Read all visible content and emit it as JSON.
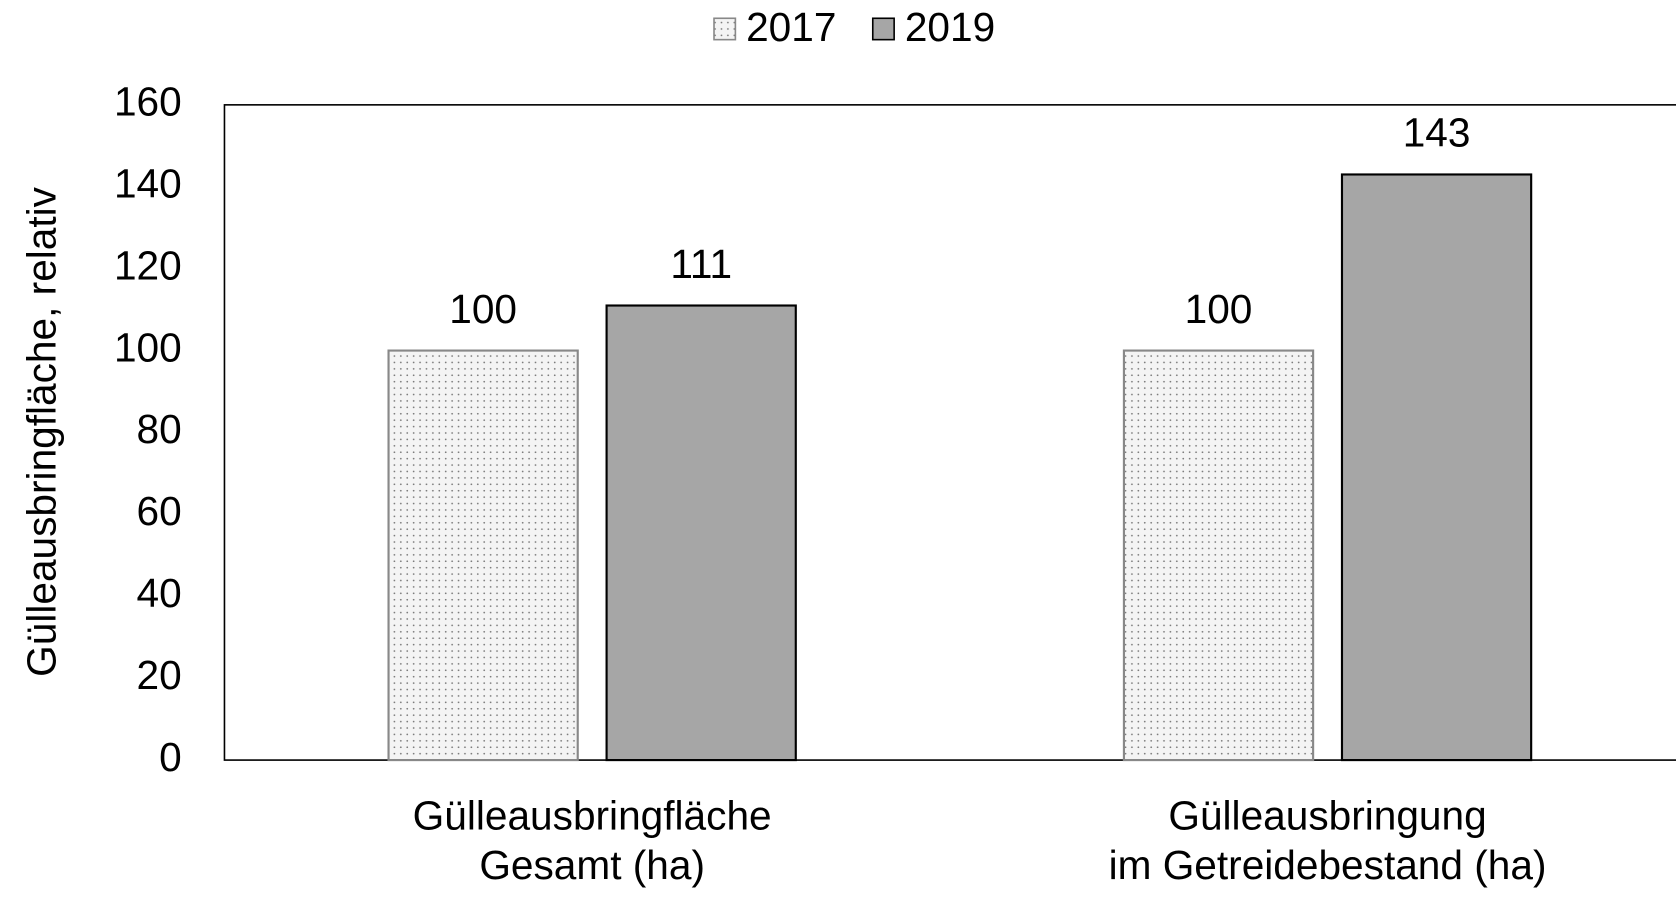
{
  "chart_data": {
    "type": "bar",
    "categories": [
      [
        "Gülleausbringfläche",
        "Gesamt (ha)"
      ],
      [
        "Gülleausbringung",
        "im Getreidebestand (ha)"
      ]
    ],
    "series": [
      {
        "name": "2017",
        "color": "#f4f4f4",
        "pattern": "dots",
        "values": [
          100,
          100
        ]
      },
      {
        "name": "2019",
        "color": "#a6a6a6",
        "values": [
          111,
          143
        ]
      }
    ],
    "ylabel": "Gülleausbringfläche, relativ",
    "ylim": [
      0,
      160
    ],
    "yticks": [
      0,
      20,
      40,
      60,
      80,
      100,
      120,
      140,
      160
    ],
    "legend": "top"
  }
}
